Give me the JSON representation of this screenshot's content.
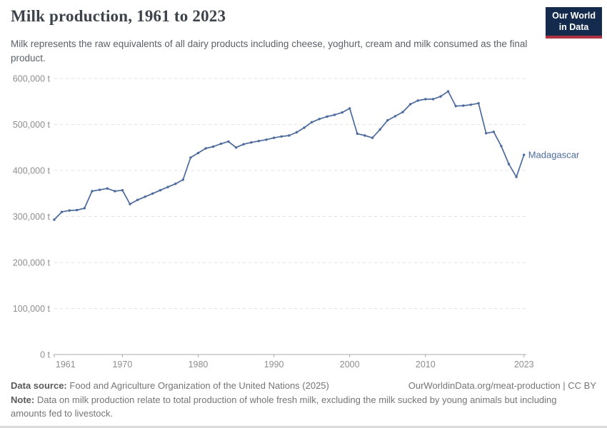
{
  "header": {
    "title": "Milk production, 1961 to 2023",
    "subtitle": "Milk represents the raw equivalents of all dairy products including cheese, yoghurt, cream and milk consumed as the final product.",
    "logo": {
      "line1": "Our World",
      "line2": "in Data"
    }
  },
  "colors": {
    "line": "#4c6a9c",
    "grid": "#e2e2e2",
    "axis": "#a8a8a8",
    "tick_text": "#8e8e8e",
    "logo_bg": "#142b4d",
    "logo_stripe": "#b13343"
  },
  "chart_data": {
    "type": "line",
    "title": "Milk production, 1961 to 2023",
    "entity": "Madagascar",
    "unit": "t",
    "xlabel": "",
    "ylabel": "",
    "grid": true,
    "ylim": [
      0,
      600000
    ],
    "xlim": [
      1961,
      2023
    ],
    "legend_position": "end-of-line-label",
    "yticks": [
      {
        "value": 0,
        "label": "0 t"
      },
      {
        "value": 100000,
        "label": "100,000 t"
      },
      {
        "value": 200000,
        "label": "200,000 t"
      },
      {
        "value": 300000,
        "label": "300,000 t"
      },
      {
        "value": 400000,
        "label": "400,000 t"
      },
      {
        "value": 500000,
        "label": "500,000 t"
      },
      {
        "value": 600000,
        "label": "600,000 t"
      }
    ],
    "xticks": [
      1961,
      1970,
      1980,
      1990,
      2000,
      2010,
      2023
    ],
    "x": [
      1961,
      1962,
      1963,
      1964,
      1965,
      1966,
      1967,
      1968,
      1969,
      1970,
      1971,
      1972,
      1973,
      1974,
      1975,
      1976,
      1977,
      1978,
      1979,
      1980,
      1981,
      1982,
      1983,
      1984,
      1985,
      1986,
      1987,
      1988,
      1989,
      1990,
      1991,
      1992,
      1993,
      1994,
      1995,
      1996,
      1997,
      1998,
      1999,
      2000,
      2001,
      2002,
      2003,
      2004,
      2005,
      2006,
      2007,
      2008,
      2009,
      2010,
      2011,
      2012,
      2013,
      2014,
      2015,
      2016,
      2017,
      2018,
      2019,
      2020,
      2021,
      2022,
      2023
    ],
    "series": [
      {
        "name": "Madagascar",
        "values": [
          293000,
          310000,
          313000,
          314000,
          318000,
          355000,
          358000,
          361000,
          355000,
          357000,
          327000,
          336000,
          343000,
          350000,
          357000,
          364000,
          371000,
          380000,
          428000,
          438000,
          448000,
          452000,
          458000,
          463000,
          450000,
          457000,
          461000,
          464000,
          467000,
          471000,
          474000,
          476000,
          483000,
          493000,
          505000,
          512000,
          517000,
          521000,
          526000,
          535000,
          480000,
          476000,
          471000,
          489000,
          509000,
          518000,
          527000,
          544000,
          552000,
          555000,
          555000,
          561000,
          572000,
          540000,
          541000,
          543000,
          546000,
          481000,
          484000,
          453000,
          414000,
          386000,
          434000
        ]
      }
    ]
  },
  "footer": {
    "datasource_label": "Data source:",
    "datasource": "Food and Agriculture Organization of the United Nations (2025)",
    "link": "OurWorldinData.org/meat-production | CC BY",
    "note_label": "Note:",
    "note": "Data on milk production relate to total production of whole fresh milk, excluding the milk sucked by young animals but including amounts fed to livestock."
  }
}
